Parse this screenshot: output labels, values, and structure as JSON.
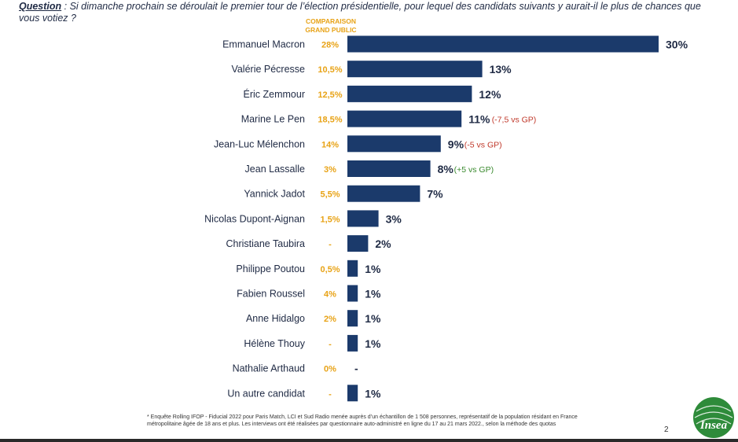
{
  "question": {
    "label": "Question",
    "text": " : Si dimanche prochain se déroulait le premier tour de l’élection présidentielle, pour lequel des candidats suivants y aurait-il le plus de chances que vous votiez ?"
  },
  "gp_header": {
    "line1": "COMPARAISON",
    "line2": "GRAND PUBLIC"
  },
  "chart_data": {
    "type": "bar",
    "orientation": "horizontal",
    "categories": [
      "Emmanuel Macron",
      "Valérie Pécresse",
      "Éric Zemmour",
      "Marine Le Pen",
      "Jean-Luc Mélenchon",
      "Jean Lassalle",
      "Yannick Jadot",
      "Nicolas Dupont-Aignan",
      "Christiane Taubira",
      "Philippe Poutou",
      "Fabien Roussel",
      "Anne Hidalgo",
      "Hélène Thouy",
      "Nathalie Arthaud",
      "Un autre candidat"
    ],
    "values": [
      30,
      13,
      12,
      11,
      9,
      8,
      7,
      3,
      2,
      1,
      1,
      1,
      1,
      0,
      1
    ],
    "value_labels": [
      "30%",
      "13%",
      "12%",
      "11%",
      "9%",
      "8%",
      "7%",
      "3%",
      "2%",
      "1%",
      "1%",
      "1%",
      "1%",
      "-",
      "1%"
    ],
    "comparison_grand_public": [
      "28%",
      "10,5%",
      "12,5%",
      "18,5%",
      "14%",
      "3%",
      "5,5%",
      "1,5%",
      "-",
      "0,5%",
      "4%",
      "2%",
      "-",
      "0%",
      "-"
    ],
    "annotations": [
      {
        "index": 3,
        "text": "(-7,5 vs GP)",
        "color": "#c0392b"
      },
      {
        "index": 4,
        "text": "(-5 vs GP)",
        "color": "#c0392b"
      },
      {
        "index": 5,
        "text": "(+5 vs GP)",
        "color": "#3a8a2e"
      }
    ],
    "xlim": [
      0,
      30
    ],
    "grid": false,
    "bar_color": "#1b3a6b",
    "gp_color": "#e8a317"
  },
  "footnote": {
    "text": "* Enquête Rolling IFOP - Fiducial 2022 pour Paris Match, LCI et Sud Radio menée auprès d’un échantillon de 1 508 personnes, représentatif de la population résidant en France métropolitaine âgée de 18 ans et plus. Les interviews ont été réalisées par questionnaire auto-administré en ligne du 17 au 21 mars 2022., selon la méthode des quotas"
  },
  "page_number": "2",
  "logo": {
    "text": "Insea",
    "color": "#2e8b3a"
  }
}
